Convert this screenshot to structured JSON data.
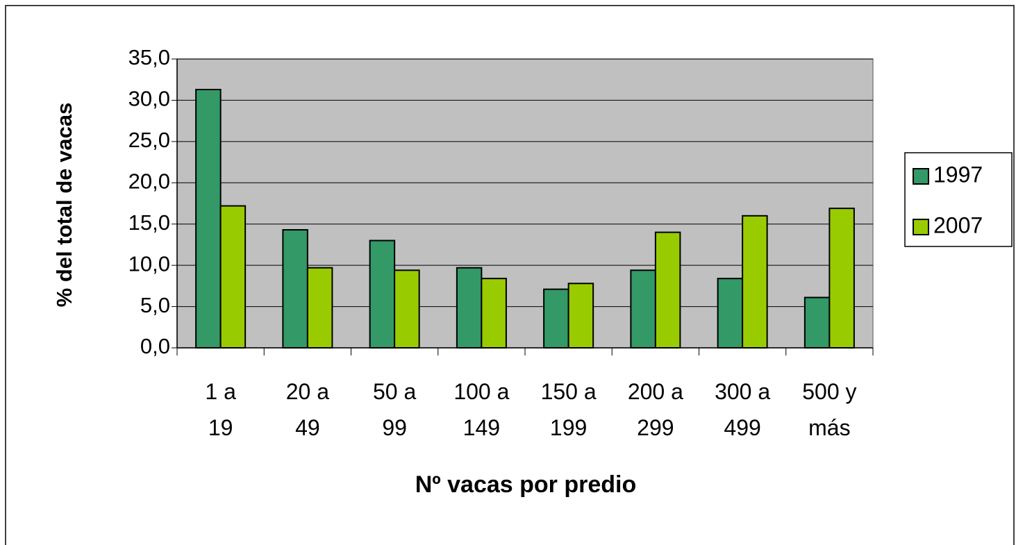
{
  "chart_data": {
    "type": "bar",
    "xlabel": "Nº vacas por predio",
    "ylabel": "% del total de vacas",
    "categories": [
      "1 a\n19",
      "20 a\n49",
      "50 a\n99",
      "100 a\n149",
      "150 a\n199",
      "200 a\n299",
      "300 a\n499",
      "500 y\nmás"
    ],
    "series": [
      {
        "name": "1997",
        "color": "#339966",
        "values": [
          31.3,
          14.3,
          13.0,
          9.7,
          7.1,
          9.4,
          8.4,
          6.1
        ]
      },
      {
        "name": "2007",
        "color": "#99cc00",
        "values": [
          17.2,
          9.7,
          9.4,
          8.4,
          7.8,
          14.0,
          16.0,
          16.9
        ]
      }
    ],
    "ylim": [
      0,
      35
    ],
    "yticks": [
      {
        "value": 0,
        "label": "0,0"
      },
      {
        "value": 5,
        "label": "5,0"
      },
      {
        "value": 10,
        "label": "10,0"
      },
      {
        "value": 15,
        "label": "15,0"
      },
      {
        "value": 20,
        "label": "20,0"
      },
      {
        "value": 25,
        "label": "25,0"
      },
      {
        "value": 30,
        "label": "30,0"
      },
      {
        "value": 35,
        "label": "35,0"
      }
    ],
    "grid": true,
    "legend": "right",
    "plot_background": "#c0c0c0"
  }
}
